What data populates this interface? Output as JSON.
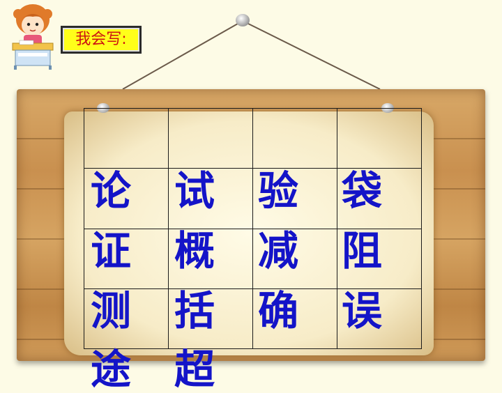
{
  "label": "我会写:",
  "icons": {
    "girl": "girl-writing-icon"
  },
  "grid": {
    "rows": [
      [
        "",
        "",
        "",
        ""
      ],
      [
        "论",
        "试",
        "验",
        "袋"
      ],
      [
        "证",
        "概",
        "减",
        "阻"
      ],
      [
        "测",
        "括",
        "确",
        "误"
      ]
    ],
    "overflow_row": [
      "途",
      "超"
    ]
  },
  "colors": {
    "character": "#1414c8",
    "label_text": "#cc1111",
    "label_bg": "#ffff1a"
  }
}
